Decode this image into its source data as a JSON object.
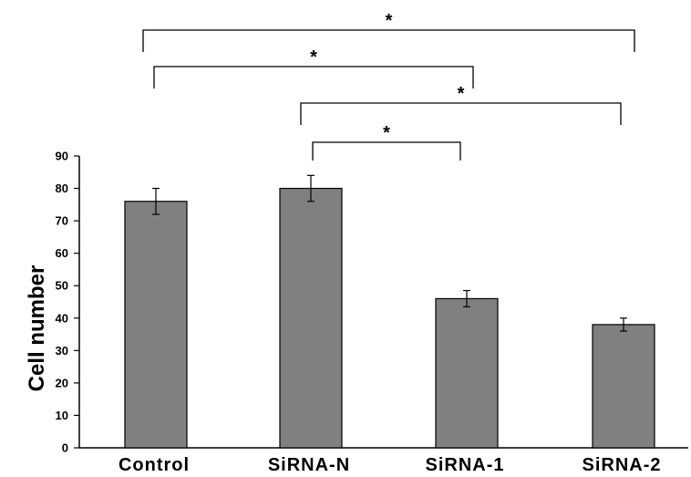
{
  "chart_data": {
    "type": "bar",
    "categories": [
      "Control",
      "SiRNA-N",
      "SiRNA-1",
      "SiRNA-2"
    ],
    "values": [
      76,
      80,
      46,
      38
    ],
    "errors": [
      4,
      4,
      2.5,
      2
    ],
    "ylabel": "Cell number",
    "xlabel": "",
    "ylim": [
      0,
      90
    ],
    "yticks": [
      "0",
      "10",
      "20",
      "30",
      "40",
      "50",
      "60",
      "70",
      "80",
      "90"
    ],
    "bar_color": "#808080",
    "grid": false,
    "significance": [
      {
        "from": 0,
        "to": 3,
        "label": "*"
      },
      {
        "from": 0,
        "to": 2,
        "label": "*"
      },
      {
        "from": 1,
        "to": 3,
        "label": "*"
      },
      {
        "from": 1,
        "to": 2,
        "label": "*"
      }
    ]
  }
}
